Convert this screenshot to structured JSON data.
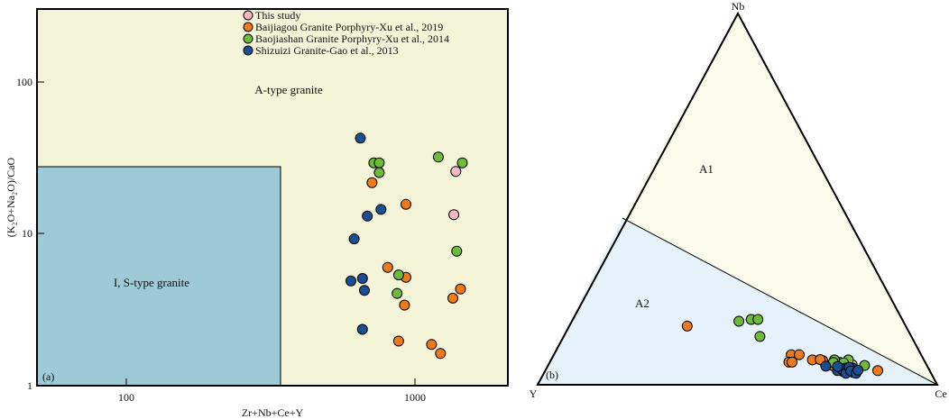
{
  "colors": {
    "a_type_bg": "#f3f4d7",
    "is_type_bg": "#9ec9d7",
    "a1_bg": "#fbfbec",
    "a2_bg": "#e6f2fa",
    "this_study": "#f7b9c1",
    "baijiagou": "#ee7a1b",
    "baojiashan": "#6fb93b",
    "shizuizi": "#1b4f94"
  },
  "panel_a": {
    "label": "(a)",
    "xlabel": "Zr+Nb+Ce+Y",
    "ylabel": "(K₂O+Na₂O)/CaO",
    "x_ticks": [
      "100",
      "1000"
    ],
    "y_ticks": [
      "1",
      "10",
      "100"
    ],
    "region_a": "A-type granite",
    "region_is": "I, S-type granite",
    "legend": [
      "This study",
      "Baijiagou Granite Porphyry-Xu et al., 2019",
      "Baojiashan Granite Porphyry-Xu et al., 2014",
      "Shizuizi Granite-Gao et al., 2013"
    ]
  },
  "panel_b": {
    "label": "(b)",
    "apex_top": "Nb",
    "apex_left": "Y",
    "apex_right": "Ce",
    "field_a1": "A1",
    "field_a2": "A2"
  },
  "chart_data": [
    {
      "type": "scatter",
      "panel": "a",
      "xscale": "log",
      "yscale": "log",
      "xlabel": "Zr+Nb+Ce+Y",
      "ylabel": "(K₂O+Na₂O)/CaO",
      "xlim": [
        50,
        2000
      ],
      "ylim": [
        1,
        350
      ],
      "regions": [
        {
          "name": "A-type granite",
          "x": [
            350,
            2000
          ],
          "y": [
            1,
            350
          ]
        },
        {
          "name": "I, S-type granite",
          "x": [
            50,
            350
          ],
          "y": [
            1,
            28
          ]
        }
      ],
      "legend_position": "top-center",
      "series": [
        {
          "name": "This study",
          "color": "#f7b9c1",
          "points": [
            [
              1330,
              28
            ],
            [
              1310,
              14.3
            ]
          ]
        },
        {
          "name": "Baijiagou Granite Porphyry-Xu et al., 2019",
          "color": "#ee7a1b",
          "points": [
            [
              690,
              23.5
            ],
            [
              900,
              16.8
            ],
            [
              780,
              6.3
            ],
            [
              900,
              5.4
            ],
            [
              1380,
              4.5
            ],
            [
              1300,
              3.9
            ],
            [
              890,
              3.5
            ],
            [
              850,
              2.0
            ],
            [
              1100,
              1.9
            ],
            [
              1180,
              1.65
            ]
          ]
        },
        {
          "name": "Baojiashan Granite Porphyry-Xu et al., 2014",
          "color": "#6fb93b",
          "points": [
            [
              1160,
              35
            ],
            [
              1400,
              32
            ],
            [
              700,
              32
            ],
            [
              730,
              32
            ],
            [
              730,
              27.5
            ],
            [
              1340,
              8.1
            ],
            [
              850,
              5.6
            ],
            [
              840,
              4.2
            ]
          ]
        },
        {
          "name": "Shizuizi Granite-Gao et al., 2013",
          "color": "#1b4f94",
          "points": [
            [
              630,
              47
            ],
            [
              740,
              15.5
            ],
            [
              665,
              14
            ],
            [
              600,
              9.8
            ],
            [
              585,
              5.1
            ],
            [
              640,
              5.3
            ],
            [
              650,
              4.4
            ],
            [
              640,
              2.4
            ]
          ]
        }
      ]
    },
    {
      "type": "scatter",
      "panel": "b",
      "subtype": "ternary",
      "apices": [
        "Nb",
        "Y",
        "Ce"
      ],
      "fields": [
        "A1",
        "A2"
      ],
      "series": [
        {
          "name": "This study",
          "color": "#f7b9c1",
          "points": [
            [
              0.052,
              0.198
            ],
            [
              0.054,
              0.186
            ]
          ]
        },
        {
          "name": "Baijiagou Granite Porphyry-Xu et al., 2019",
          "color": "#ee7a1b",
          "points": [
            [
              0.158,
              0.547
            ],
            [
              0.081,
              0.325
            ],
            [
              0.061,
              0.341
            ],
            [
              0.081,
              0.305
            ],
            [
              0.061,
              0.333
            ],
            [
              0.067,
              0.279
            ],
            [
              0.065,
              0.254
            ],
            [
              0.05,
              0.234
            ],
            [
              0.038,
              0.13
            ],
            [
              0.043,
              0.191
            ],
            [
              0.06,
              0.213
            ],
            [
              0.068,
              0.259
            ]
          ]
        },
        {
          "name": "Baojiashan Granite Porphyry-Xu et al., 2014",
          "color": "#6fb93b",
          "points": [
            [
              0.171,
              0.411
            ],
            [
              0.176,
              0.378
            ],
            [
              0.176,
              0.361
            ],
            [
              0.13,
              0.379
            ],
            [
              0.067,
              0.189
            ],
            [
              0.059,
              0.205
            ],
            [
              0.052,
              0.156
            ],
            [
              0.067,
              0.224
            ],
            [
              0.06,
              0.23
            ]
          ]
        },
        {
          "name": "Shizuizi Granite-Gao et al., 2013",
          "color": "#1b4f94",
          "points": [
            [
              0.05,
              0.254
            ],
            [
              0.045,
              0.208
            ],
            [
              0.036,
              0.218
            ],
            [
              0.045,
              0.189
            ],
            [
              0.033,
              0.194
            ],
            [
              0.038,
              0.231
            ],
            [
              0.043,
              0.218
            ],
            [
              0.049,
              0.225
            ],
            [
              0.031,
              0.213
            ],
            [
              0.047,
              0.197
            ],
            [
              0.037,
              0.198
            ],
            [
              0.031,
              0.188
            ],
            [
              0.039,
              0.179
            ]
          ]
        }
      ]
    }
  ]
}
